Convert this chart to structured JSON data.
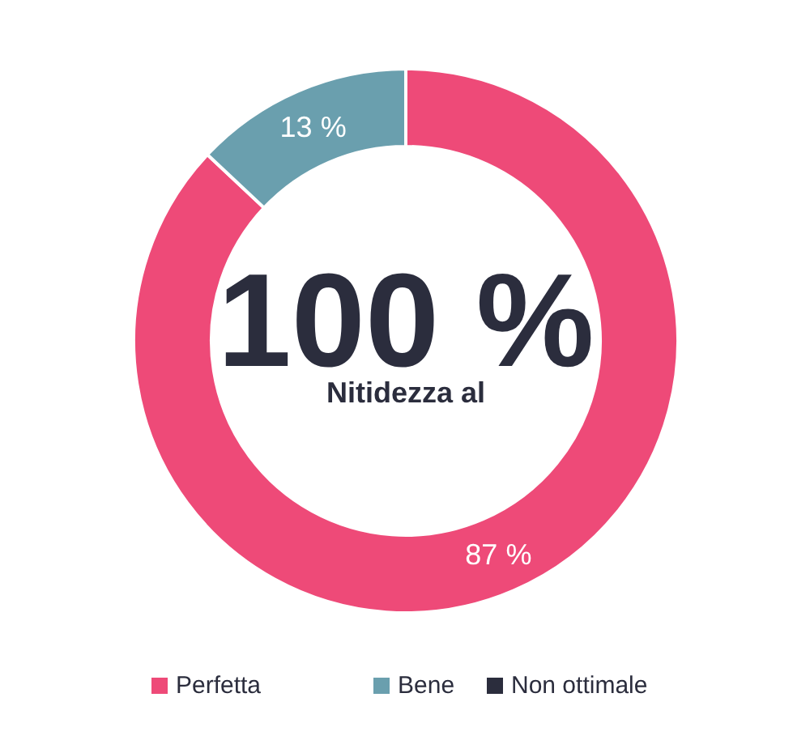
{
  "chart_data": {
    "type": "donut",
    "categories": [
      "Perfetta",
      "Bene",
      "Non ottimale"
    ],
    "values": [
      87,
      13,
      0
    ],
    "colors": [
      "#ee4a78",
      "#6a9fae",
      "#2b2d3d"
    ],
    "value_labels": [
      "87 %",
      "13 %",
      null
    ],
    "annotations": [
      "100 %",
      "Nitidezza al"
    ],
    "legend": "bottom"
  }
}
